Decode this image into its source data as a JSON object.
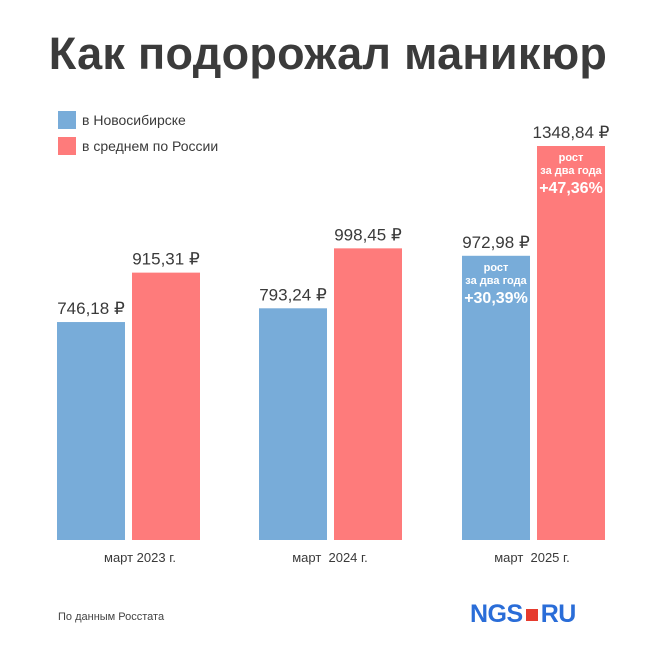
{
  "title": "Как подорожал маникюр",
  "legend": [
    {
      "label": "в Новосибирске",
      "color": "#78acd9"
    },
    {
      "label": "в среднем по России",
      "color": "#fe7b7b"
    }
  ],
  "footer": {
    "source": "По данным Росстата",
    "logo_left": "NGS",
    "logo_right": "RU"
  },
  "chart_data": {
    "type": "bar",
    "categories": [
      "март 2023 г.",
      "март  2024 г.",
      "март  2025 г."
    ],
    "series": [
      {
        "name": "в Новосибирске",
        "color": "#78acd9",
        "values": [
          746.18,
          793.24,
          972.98
        ],
        "labels": [
          "746,18 ₽",
          "793,24 ₽",
          "972,98 ₽"
        ]
      },
      {
        "name": "в среднем по России",
        "color": "#fe7b7b",
        "values": [
          915.31,
          998.45,
          1348.84
        ],
        "labels": [
          "915,31 ₽",
          "998,45 ₽",
          "1348,84 ₽"
        ]
      }
    ],
    "annotations": [
      {
        "series": 0,
        "category": 2,
        "lines": [
          "рост",
          "за два года",
          "+30,39%"
        ]
      },
      {
        "series": 1,
        "category": 2,
        "lines": [
          "рост",
          "за два года",
          "+47,36%"
        ]
      }
    ],
    "ylim": [
      0,
      1348.84
    ],
    "grid": false,
    "legend_position": "top-left"
  }
}
